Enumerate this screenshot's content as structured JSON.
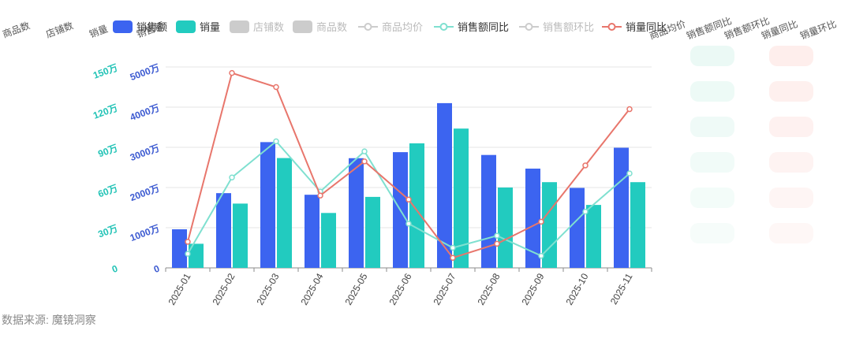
{
  "header_columns": [
    "商品数",
    "店铺数",
    "销量",
    "销售额",
    "商品均价",
    "销售额同比",
    "销售额环比",
    "销量同比",
    "销量环比"
  ],
  "legend": [
    {
      "label": "销售额",
      "kind": "bar",
      "color": "#3c64f0",
      "active": true
    },
    {
      "label": "销量",
      "kind": "bar",
      "color": "#22cbbf",
      "active": true
    },
    {
      "label": "店铺数",
      "kind": "bar",
      "color": "#cccccc",
      "active": false
    },
    {
      "label": "商品数",
      "kind": "bar",
      "color": "#cccccc",
      "active": false
    },
    {
      "label": "商品均价",
      "kind": "line",
      "color": "#cccccc",
      "active": false
    },
    {
      "label": "销售额同比",
      "kind": "line",
      "color": "#7fe0d0",
      "active": true
    },
    {
      "label": "销售额环比",
      "kind": "line",
      "color": "#cccccc",
      "active": false
    },
    {
      "label": "销量同比",
      "kind": "line",
      "color": "#e8766c",
      "active": true
    }
  ],
  "chart_data": {
    "type": "bar",
    "categories": [
      "2025-01",
      "2025-02",
      "2025-03",
      "2025-04",
      "2025-05",
      "2025-06",
      "2025-07",
      "2025-08",
      "2025-09",
      "2025-10",
      "2025-11"
    ],
    "y_left_ticks": [
      "0",
      "1000万",
      "2000万",
      "3000万",
      "4000万",
      "5000万"
    ],
    "y_left_ylim": [
      0,
      5000
    ],
    "y_left2_ticks": [
      "0",
      "30万",
      "60万",
      "90万",
      "120万",
      "150万"
    ],
    "y_left2_ylim": [
      0,
      150
    ],
    "series": [
      {
        "name": "销售额",
        "type": "bar",
        "axis": "left",
        "color": "#3c64f0",
        "values": [
          960,
          1860,
          3130,
          1820,
          2730,
          2880,
          4100,
          2810,
          2470,
          1990,
          2990
        ]
      },
      {
        "name": "销量",
        "type": "bar",
        "axis": "left2",
        "color": "#22cbbf",
        "values": [
          18,
          48,
          82,
          41,
          53,
          93,
          104,
          60,
          64,
          47,
          64
        ]
      },
      {
        "name": "销售额同比",
        "type": "line",
        "color": "#7fe0d0",
        "values_px_fraction": [
          0.07,
          0.45,
          0.63,
          0.38,
          0.58,
          0.22,
          0.1,
          0.16,
          0.06,
          0.28,
          0.47
        ]
      },
      {
        "name": "销量同比",
        "type": "line",
        "color": "#e8766c",
        "values_px_fraction": [
          0.13,
          0.97,
          0.9,
          0.36,
          0.53,
          0.34,
          0.05,
          0.12,
          0.23,
          0.51,
          0.79
        ]
      }
    ],
    "grid": true,
    "legend_position": "top"
  },
  "source_note": "数据来源: 魔镜洞察"
}
